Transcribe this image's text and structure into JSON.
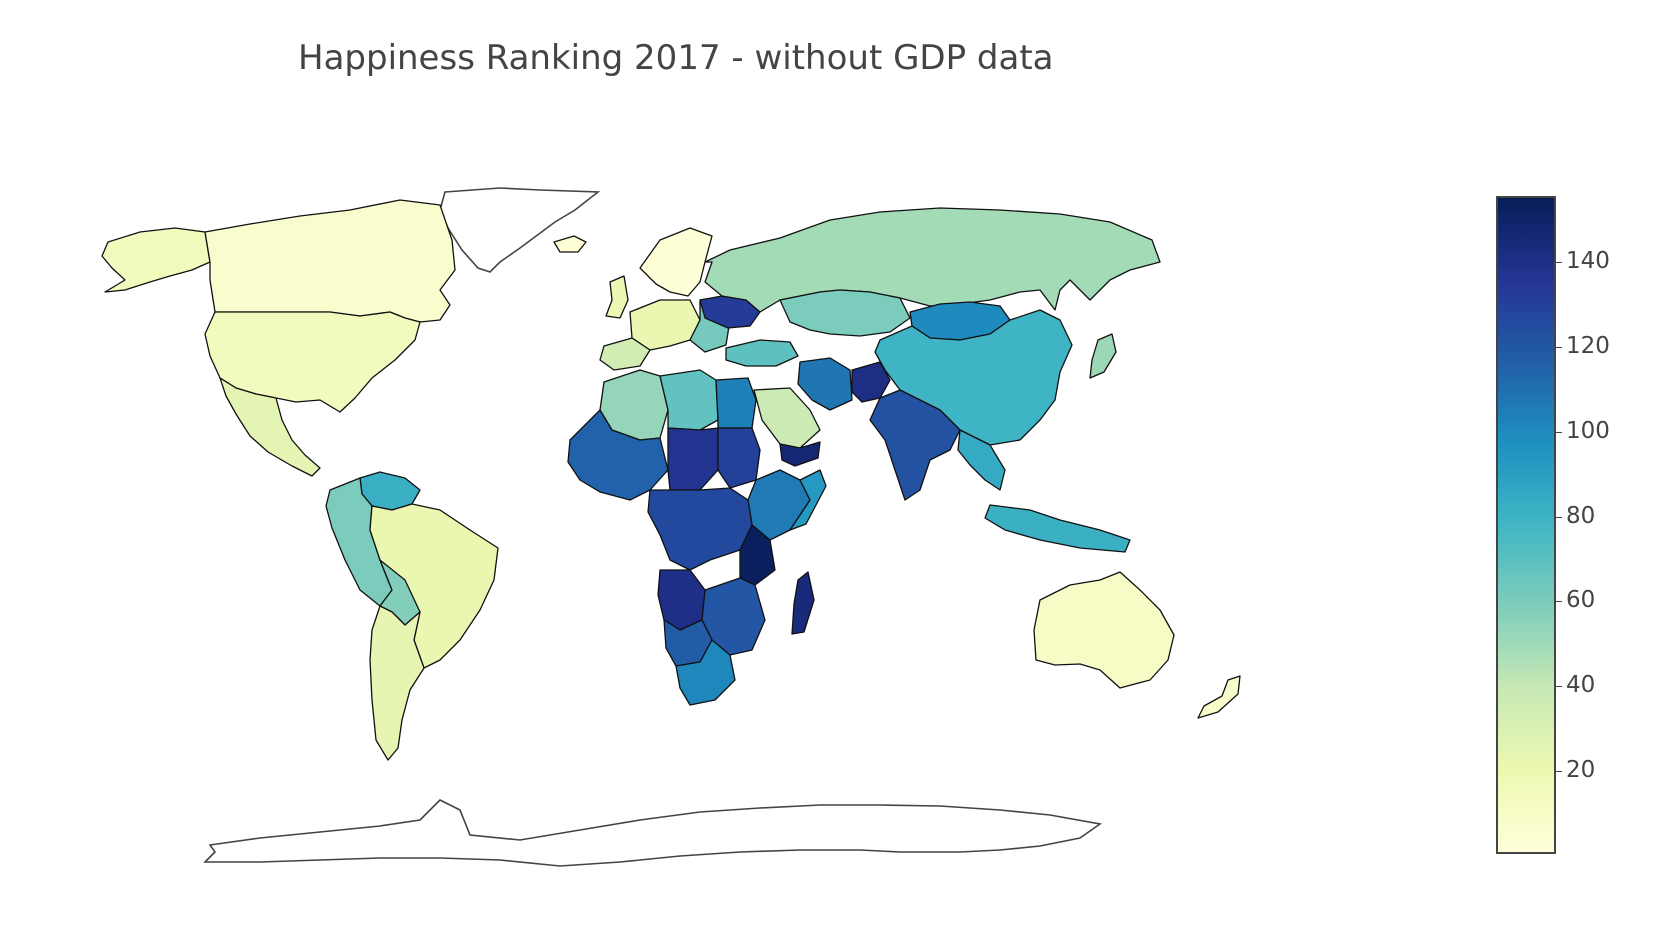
{
  "title": "Happiness Ranking 2017 - without GDP data",
  "colorscale": [
    "#ffffd9",
    "#edf8b1",
    "#c7e9b4",
    "#7fcdbb",
    "#41b6c4",
    "#1d91c0",
    "#225ea8",
    "#253494",
    "#081d58"
  ],
  "colorbar": {
    "min": 1,
    "max": 155,
    "ticks": [
      {
        "value": 20,
        "label": "20"
      },
      {
        "value": 40,
        "label": "40"
      },
      {
        "value": 60,
        "label": "60"
      },
      {
        "value": 80,
        "label": "80"
      },
      {
        "value": 100,
        "label": "100"
      },
      {
        "value": 120,
        "label": "120"
      },
      {
        "value": 140,
        "label": "140"
      }
    ]
  },
  "chart_data": {
    "type": "choropleth",
    "title": "Happiness Ranking 2017 - without GDP data",
    "z_range": [
      1,
      155
    ],
    "approximate_regions": [
      {
        "region": "Canada",
        "rank": 7
      },
      {
        "region": "United States",
        "rank": 14
      },
      {
        "region": "Mexico",
        "rank": 25
      },
      {
        "region": "Brazil",
        "rank": 22
      },
      {
        "region": "Argentina",
        "rank": 24
      },
      {
        "region": "Venezuela",
        "rank": 82
      },
      {
        "region": "Russia",
        "rank": 49
      },
      {
        "region": "China",
        "rank": 79
      },
      {
        "region": "Mongolia",
        "rank": 100
      },
      {
        "region": "India",
        "rank": 122
      },
      {
        "region": "Australia",
        "rank": 10
      },
      {
        "region": "Kazakhstan",
        "rank": 60
      },
      {
        "region": "Algeria",
        "rank": 53
      },
      {
        "region": "Libya",
        "rank": 68
      },
      {
        "region": "Egypt",
        "rank": 104
      },
      {
        "region": "Sudan",
        "rank": 130
      },
      {
        "region": "Chad",
        "rank": 137
      },
      {
        "region": "Angola",
        "rank": 140
      },
      {
        "region": "DR Congo",
        "rank": 126
      },
      {
        "region": "South Africa",
        "rank": 101
      },
      {
        "region": "Madagascar",
        "rank": 144
      },
      {
        "region": "Saudi Arabia",
        "rank": 37
      },
      {
        "region": "Iran",
        "rank": 108
      },
      {
        "region": "Afghanistan",
        "rank": 141
      },
      {
        "region": "Yemen",
        "rank": 146
      },
      {
        "region": "Ukraine",
        "rank": 132
      },
      {
        "region": "Indonesia",
        "rank": 81
      }
    ]
  }
}
